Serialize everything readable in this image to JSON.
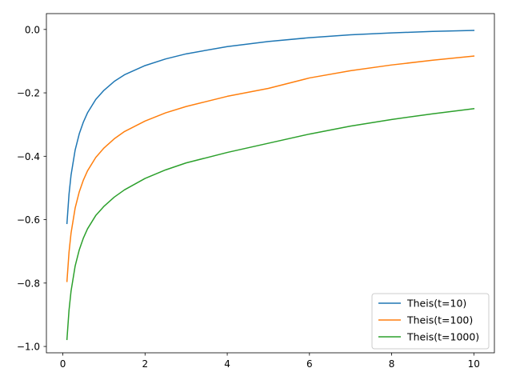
{
  "chart_data": {
    "type": "line",
    "title": "",
    "xlabel": "",
    "ylabel": "",
    "xlim": [
      -0.4,
      10.5
    ],
    "ylim": [
      -1.02,
      0.05
    ],
    "x_ticks": [
      0,
      2,
      4,
      6,
      8,
      10
    ],
    "x_tick_labels": [
      "0",
      "2",
      "4",
      "6",
      "8",
      "10"
    ],
    "y_ticks": [
      0.0,
      -0.2,
      -0.4,
      -0.6,
      -0.8,
      -1.0
    ],
    "y_tick_labels": [
      "0.0",
      "−0.2",
      "−0.4",
      "−0.6",
      "−0.8",
      "−1.0"
    ],
    "grid": false,
    "legend_position": "lower-right",
    "series": [
      {
        "name": "Theis(t=10)",
        "color": "#1f77b4",
        "x": [
          0.1,
          0.15,
          0.2,
          0.3,
          0.4,
          0.5,
          0.6,
          0.8,
          1.0,
          1.25,
          1.5,
          2.0,
          2.5,
          3.0,
          4.0,
          5.0,
          6.0,
          7.0,
          8.0,
          9.0,
          10.0
        ],
        "y": [
          -0.612,
          -0.52,
          -0.459,
          -0.38,
          -0.329,
          -0.292,
          -0.263,
          -0.221,
          -0.192,
          -0.164,
          -0.143,
          -0.114,
          -0.093,
          -0.077,
          -0.054,
          -0.038,
          -0.026,
          -0.017,
          -0.011,
          -0.006,
          -0.003
        ]
      },
      {
        "name": "Theis(t=100)",
        "color": "#ff7f0e",
        "x": [
          0.1,
          0.15,
          0.2,
          0.3,
          0.4,
          0.5,
          0.6,
          0.8,
          1.0,
          1.25,
          1.5,
          2.0,
          2.5,
          3.0,
          4.0,
          5.0,
          6.0,
          7.0,
          8.0,
          9.0,
          10.0
        ],
        "y": [
          -0.795,
          -0.703,
          -0.642,
          -0.563,
          -0.512,
          -0.475,
          -0.446,
          -0.404,
          -0.374,
          -0.345,
          -0.322,
          -0.289,
          -0.263,
          -0.243,
          -0.211,
          -0.186,
          -0.153,
          -0.13,
          -0.112,
          -0.097,
          -0.084
        ]
      },
      {
        "name": "Theis(t=1000)",
        "color": "#2ca02c",
        "x": [
          0.1,
          0.15,
          0.2,
          0.3,
          0.4,
          0.5,
          0.6,
          0.8,
          1.0,
          1.25,
          1.5,
          2.0,
          2.5,
          3.0,
          4.0,
          5.0,
          6.0,
          7.0,
          8.0,
          9.0,
          10.0
        ],
        "y": [
          -0.978,
          -0.886,
          -0.825,
          -0.746,
          -0.695,
          -0.658,
          -0.629,
          -0.587,
          -0.558,
          -0.529,
          -0.506,
          -0.47,
          -0.443,
          -0.421,
          -0.388,
          -0.359,
          -0.33,
          -0.305,
          -0.284,
          -0.266,
          -0.25
        ]
      }
    ]
  }
}
